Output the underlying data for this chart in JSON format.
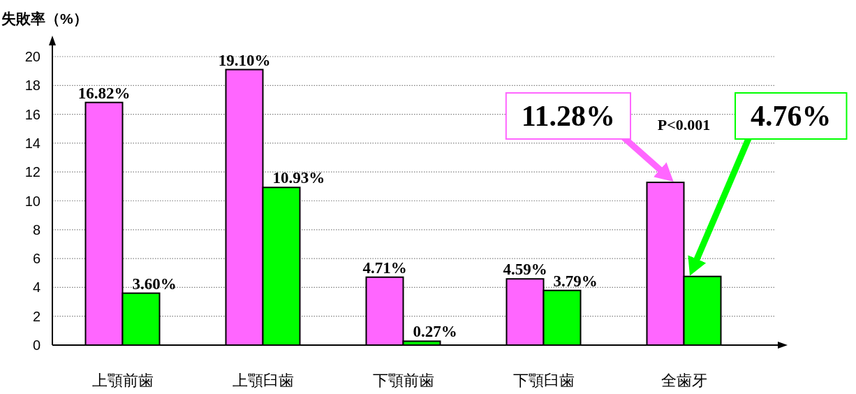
{
  "chart_data": {
    "type": "bar",
    "ylabel": "失敗率（%）",
    "categories": [
      "上顎前歯",
      "上顎臼歯",
      "下顎前歯",
      "下顎臼歯",
      "全歯牙"
    ],
    "series": [
      {
        "color": "#ff66ff",
        "values": [
          16.82,
          19.1,
          4.71,
          4.59,
          11.28
        ],
        "value_labels": [
          "16.82%",
          "19.10%",
          "4.71%",
          "4.59%",
          null
        ]
      },
      {
        "color": "#00ff00",
        "values": [
          3.6,
          10.93,
          0.27,
          3.79,
          4.76
        ],
        "value_labels": [
          "3.60%",
          "10.93%",
          "0.27%",
          "3.79%",
          null
        ]
      }
    ],
    "ylim": [
      0,
      20
    ],
    "yticks": [
      0,
      2,
      4,
      6,
      8,
      10,
      12,
      14,
      16,
      18,
      20
    ],
    "grid": "y",
    "annotations": [
      {
        "text": "11.28%",
        "x": "全歯牙",
        "y": 11.28
      },
      {
        "text": "4.76%",
        "x": "全歯牙",
        "y": 4.76
      },
      "P<0.001"
    ]
  }
}
